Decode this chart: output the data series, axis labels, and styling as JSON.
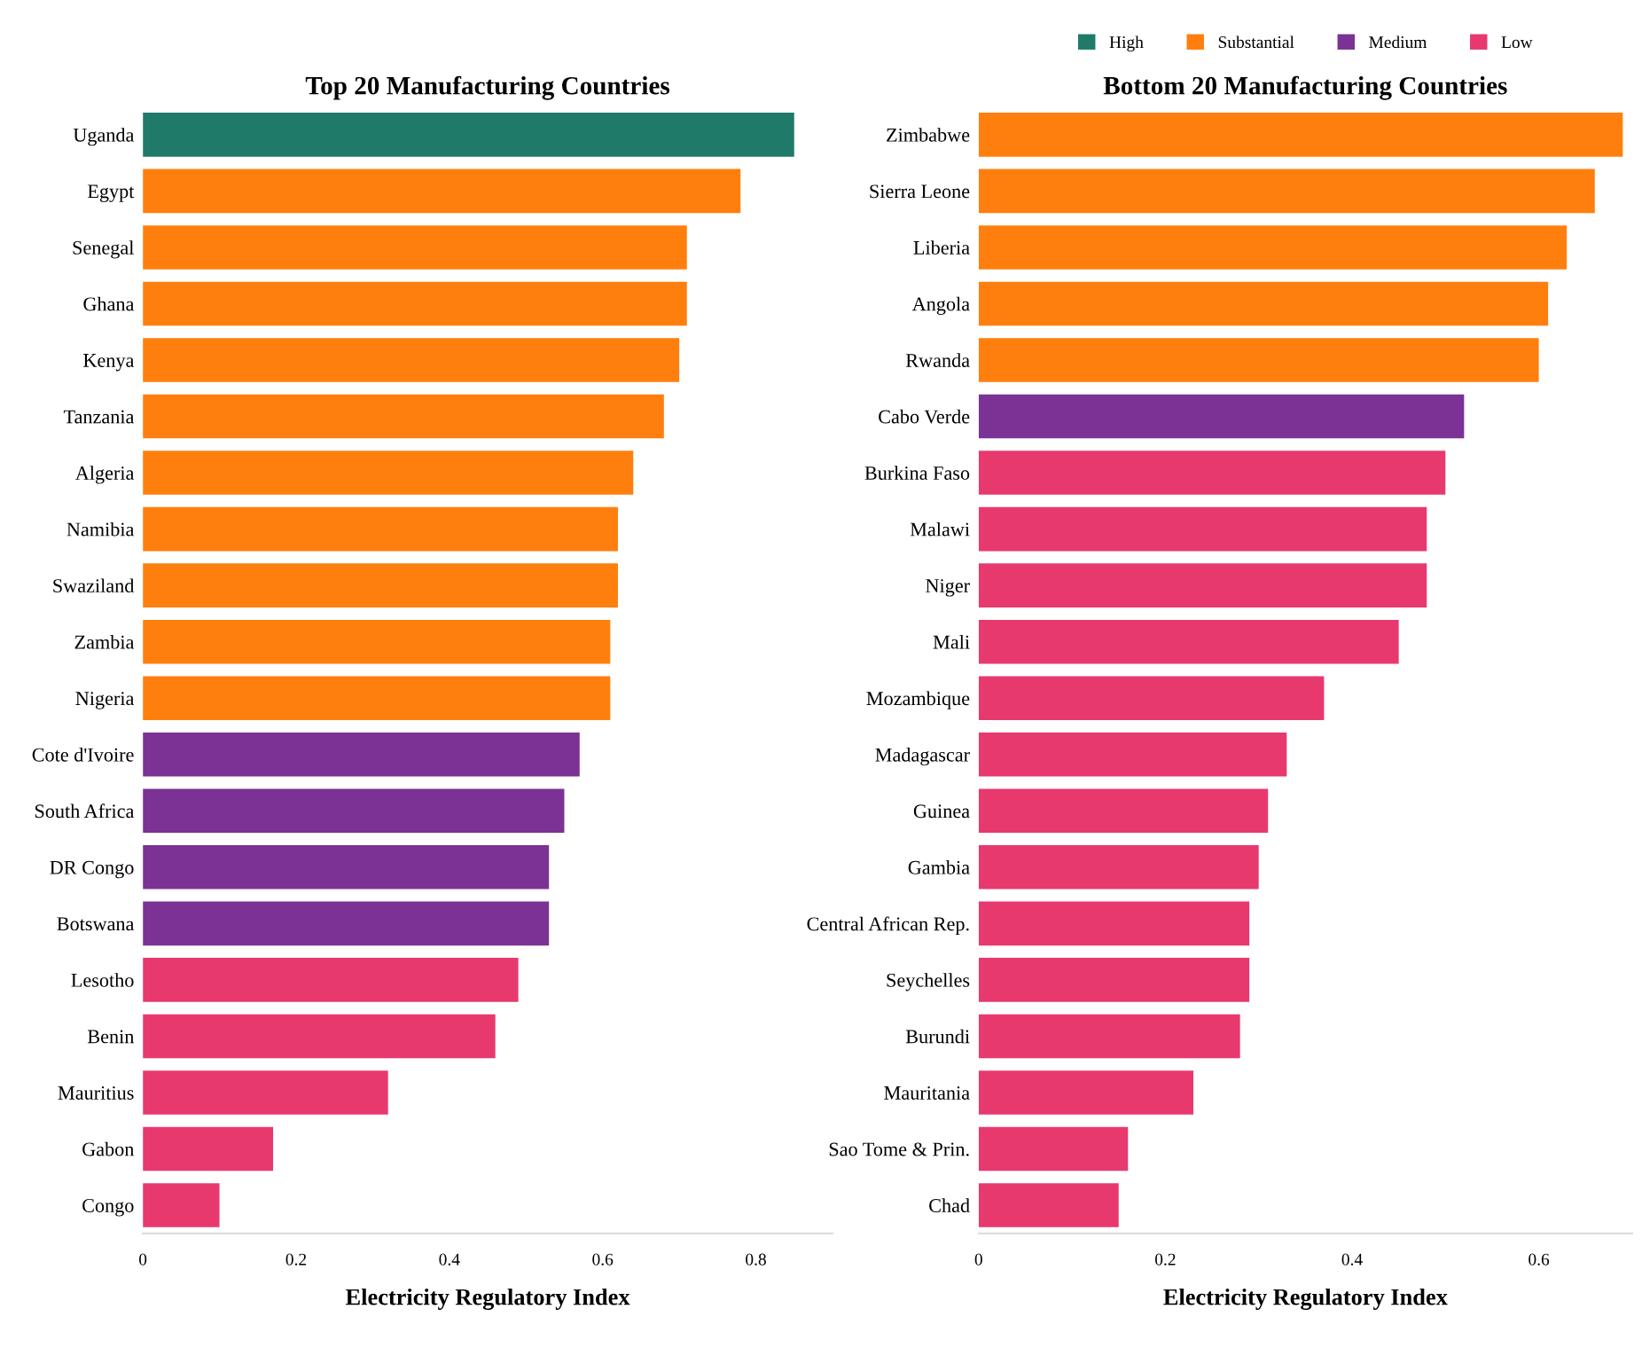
{
  "chart_data": [
    {
      "type": "bar",
      "orientation": "horizontal",
      "title": "Top 20 Manufacturing Countries",
      "xlabel": "Electricity Regulatory Index",
      "categories": [
        "Uganda",
        "Egypt",
        "Senegal",
        "Ghana",
        "Kenya",
        "Tanzania",
        "Algeria",
        "Namibia",
        "Swaziland",
        "Zambia",
        "Nigeria",
        "Cote d'Ivoire",
        "South Africa",
        "DR Congo",
        "Botswana",
        "Lesotho",
        "Benin",
        "Mauritius",
        "Gabon",
        "Congo"
      ],
      "series": [
        {
          "color": "#1f7a6a",
          "values": [
            0.85,
            null,
            null,
            null,
            null,
            null,
            null,
            null,
            null,
            null,
            null,
            null,
            null,
            null,
            null,
            null,
            null,
            null,
            null,
            null
          ]
        },
        {
          "color": "#ff7f0e",
          "values": [
            null,
            0.78,
            0.71,
            0.71,
            0.7,
            0.68,
            0.64,
            0.62,
            0.62,
            0.61,
            0.61,
            null,
            null,
            null,
            null,
            null,
            null,
            null,
            null,
            null
          ]
        },
        {
          "color": "#7b3294",
          "values": [
            null,
            null,
            null,
            null,
            null,
            null,
            null,
            null,
            null,
            null,
            null,
            0.57,
            0.55,
            0.53,
            0.53,
            null,
            null,
            null,
            null,
            null
          ]
        },
        {
          "color": "#e8396e",
          "values": [
            null,
            null,
            null,
            null,
            null,
            null,
            null,
            null,
            null,
            null,
            null,
            null,
            null,
            null,
            null,
            0.49,
            0.46,
            0.32,
            0.17,
            0.1
          ]
        }
      ],
      "xlim": [
        0,
        0.9
      ],
      "xticks": [
        0,
        0.2,
        0.4,
        0.6,
        0.8
      ],
      "grid": false
    },
    {
      "type": "bar",
      "orientation": "horizontal",
      "title": "Bottom 20 Manufacturing Countries",
      "xlabel": "Electricity Regulatory Index",
      "categories": [
        "Zimbabwe",
        "Sierra Leone",
        "Liberia",
        "Angola",
        "Rwanda",
        "Cabo Verde",
        "Burkina Faso",
        "Malawi",
        "Niger",
        "Mali",
        "Mozambique",
        "Madagascar",
        "Guinea",
        "Gambia",
        "Central African Rep.",
        "Seychelles",
        "Burundi",
        "Mauritania",
        "Sao Tome & Prin.",
        "Chad"
      ],
      "series": [
        {
          "name": "High",
          "color": "#1f7a6a",
          "values": [
            null,
            null,
            null,
            null,
            null,
            null,
            null,
            null,
            null,
            null,
            null,
            null,
            null,
            null,
            null,
            null,
            null,
            null,
            null,
            null
          ]
        },
        {
          "name": "Substantial",
          "color": "#ff7f0e",
          "values": [
            0.69,
            0.66,
            0.63,
            0.61,
            0.6,
            null,
            null,
            null,
            null,
            null,
            null,
            null,
            null,
            null,
            null,
            null,
            null,
            null,
            null,
            null
          ]
        },
        {
          "name": "Medium",
          "color": "#7b3294",
          "values": [
            null,
            null,
            null,
            null,
            null,
            0.52,
            null,
            null,
            null,
            null,
            null,
            null,
            null,
            null,
            null,
            null,
            null,
            null,
            null,
            null
          ]
        },
        {
          "name": "Low",
          "color": "#e8396e",
          "values": [
            null,
            null,
            null,
            null,
            null,
            null,
            0.5,
            0.48,
            0.48,
            0.45,
            0.37,
            0.33,
            0.31,
            0.3,
            0.29,
            0.29,
            0.28,
            0.23,
            0.16,
            0.15
          ]
        }
      ],
      "xlim": [
        0,
        0.7
      ],
      "xticks": [
        0,
        0.2,
        0.4,
        0.6
      ],
      "grid": false,
      "legend": "top"
    }
  ]
}
